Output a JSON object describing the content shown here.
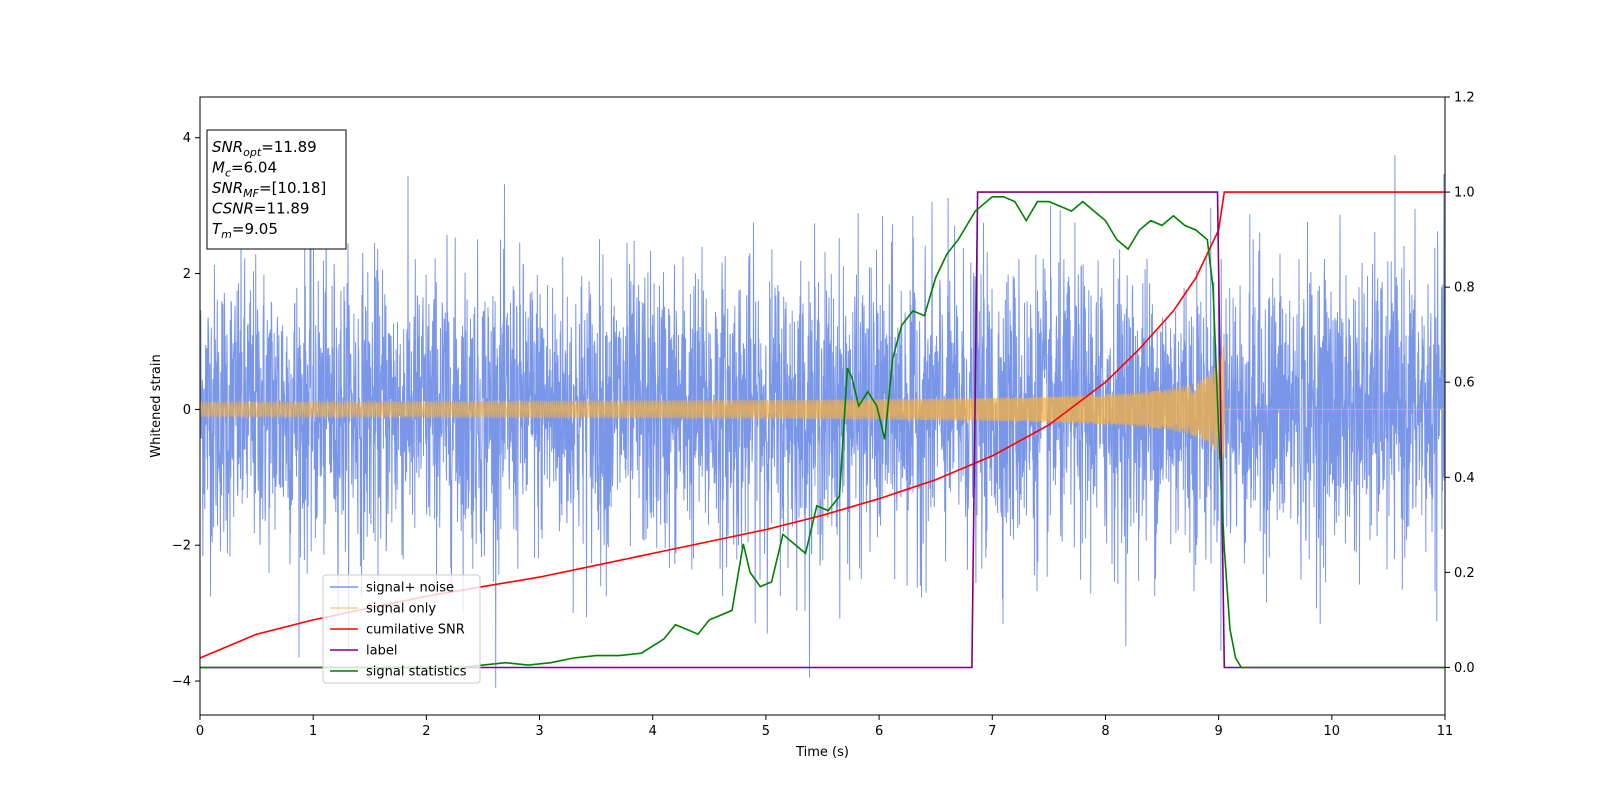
{
  "chart_data": {
    "type": "line",
    "xlabel": "Time (s)",
    "ylabel": "Whitened strain",
    "xlim": [
      0,
      11
    ],
    "ylim_left": [
      -4.5,
      4.6
    ],
    "ylim_right": [
      -0.1,
      1.2
    ],
    "x_ticks": [
      "0",
      "1",
      "2",
      "3",
      "4",
      "5",
      "6",
      "7",
      "8",
      "9",
      "10",
      "11"
    ],
    "y_ticks_left": [
      "−4",
      "−2",
      "0",
      "2",
      "4"
    ],
    "y_ticks_right": [
      "0.0",
      "0.2",
      "0.4",
      "0.6",
      "0.8",
      "1.0",
      "1.2"
    ],
    "grid": false,
    "legend_position": "lower-left",
    "info_box": {
      "lines": [
        {
          "name": "SNR",
          "sub": "opt",
          "value": "=11.89"
        },
        {
          "name": "M",
          "sub": "c",
          "value": "=6.04"
        },
        {
          "name": "SNR",
          "sub": "MF",
          "value": "=[10.18]"
        },
        {
          "name": "CSNR",
          "sub": "",
          "value": "=11.89"
        },
        {
          "name": "T",
          "sub": "m",
          "value": "=9.05"
        }
      ]
    },
    "series": [
      {
        "name": "signal+ noise",
        "axis": "left",
        "color": "#6b8be6",
        "kind": "noise",
        "description_values": {
          "std": 1.05,
          "peaks_max": 3.9,
          "peaks_min": -4.1,
          "x_range": [
            0,
            11
          ]
        }
      },
      {
        "name": "signal only",
        "axis": "left",
        "color": "#f5b041",
        "kind": "chirp",
        "description_values": {
          "start_amplitude": 0.07,
          "end_amplitude": 1.05,
          "merger_time": 9.05,
          "x_range": [
            0,
            11
          ]
        }
      },
      {
        "name": "cumilative SNR",
        "axis": "right",
        "color": "#ff0000",
        "x": [
          0,
          0.5,
          1,
          1.5,
          2,
          2.5,
          3,
          3.5,
          4,
          4.5,
          5,
          5.5,
          6,
          6.5,
          7,
          7.5,
          8,
          8.3,
          8.6,
          8.8,
          9.0,
          9.05,
          11
        ],
        "y": [
          0.02,
          0.07,
          0.1,
          0.125,
          0.15,
          0.17,
          0.19,
          0.215,
          0.24,
          0.265,
          0.29,
          0.32,
          0.355,
          0.395,
          0.445,
          0.51,
          0.6,
          0.67,
          0.75,
          0.82,
          0.92,
          1.0,
          1.0
        ]
      },
      {
        "name": "label",
        "axis": "right",
        "color": "#800080",
        "x": [
          0,
          6.82,
          6.87,
          8.99,
          9.05,
          11
        ],
        "y": [
          0,
          0,
          1,
          1,
          0,
          0
        ]
      },
      {
        "name": "signal statistics",
        "axis": "right",
        "color": "#008000",
        "x": [
          0,
          1,
          2,
          2.3,
          2.5,
          2.7,
          2.9,
          3.1,
          3.3,
          3.5,
          3.7,
          3.9,
          4.1,
          4.2,
          4.3,
          4.4,
          4.5,
          4.6,
          4.7,
          4.8,
          4.86,
          4.95,
          5.05,
          5.15,
          5.25,
          5.35,
          5.45,
          5.55,
          5.65,
          5.72,
          5.76,
          5.82,
          5.9,
          5.98,
          6.05,
          6.12,
          6.2,
          6.3,
          6.4,
          6.5,
          6.6,
          6.7,
          6.8,
          6.85,
          6.9,
          7.0,
          7.1,
          7.2,
          7.3,
          7.4,
          7.5,
          7.6,
          7.7,
          7.8,
          7.9,
          8.0,
          8.05,
          8.1,
          8.2,
          8.3,
          8.4,
          8.5,
          8.6,
          8.7,
          8.8,
          8.9,
          8.95,
          9.0,
          9.05,
          9.1,
          9.15,
          9.2,
          9.3,
          9.5,
          11
        ],
        "y": [
          0.0,
          0.0,
          0.0,
          0.0,
          0.005,
          0.01,
          0.005,
          0.01,
          0.02,
          0.025,
          0.025,
          0.03,
          0.06,
          0.09,
          0.08,
          0.07,
          0.1,
          0.11,
          0.12,
          0.26,
          0.2,
          0.17,
          0.18,
          0.28,
          0.26,
          0.24,
          0.34,
          0.33,
          0.36,
          0.63,
          0.61,
          0.55,
          0.58,
          0.55,
          0.48,
          0.65,
          0.72,
          0.75,
          0.74,
          0.82,
          0.87,
          0.9,
          0.94,
          0.96,
          0.97,
          0.99,
          0.99,
          0.98,
          0.94,
          0.98,
          0.98,
          0.97,
          0.96,
          0.98,
          0.96,
          0.94,
          0.92,
          0.9,
          0.88,
          0.92,
          0.94,
          0.93,
          0.95,
          0.93,
          0.92,
          0.9,
          0.8,
          0.5,
          0.25,
          0.08,
          0.02,
          0.0,
          0.0,
          0.0,
          0.0
        ]
      }
    ]
  }
}
